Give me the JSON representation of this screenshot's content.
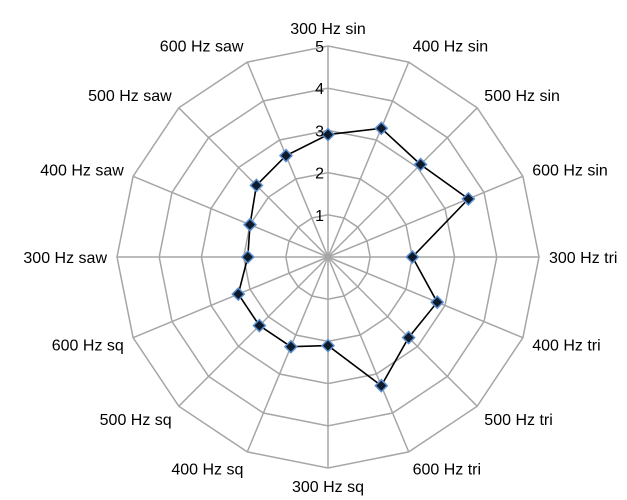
{
  "chart_data": {
    "type": "radar",
    "title": "",
    "categories": [
      "300 Hz sin",
      "400 Hz sin",
      "500 Hz sin",
      "600 Hz sin",
      "300 Hz tri",
      "400 Hz tri",
      "500 Hz tri",
      "600 Hz tri",
      "300 Hz sq",
      "400 Hz sq",
      "500 Hz sq",
      "600 Hz sq",
      "300 Hz saw",
      "400 Hz saw",
      "500 Hz saw",
      "600 Hz saw"
    ],
    "series": [
      {
        "values": [
          2.9,
          3.3,
          3.1,
          3.6,
          2.0,
          2.8,
          2.7,
          3.3,
          2.1,
          2.3,
          2.3,
          2.3,
          1.9,
          2.0,
          2.4,
          2.6
        ]
      }
    ],
    "rlim": [
      0,
      5
    ],
    "rticks": [
      "1",
      "2",
      "3",
      "4",
      "5"
    ],
    "grid": true,
    "legend": "none",
    "colors": {
      "grid": "#a6a6a6",
      "line": "#000000",
      "marker_fill": "#0d1b2a",
      "marker_stroke": "#5b8fd1"
    }
  }
}
